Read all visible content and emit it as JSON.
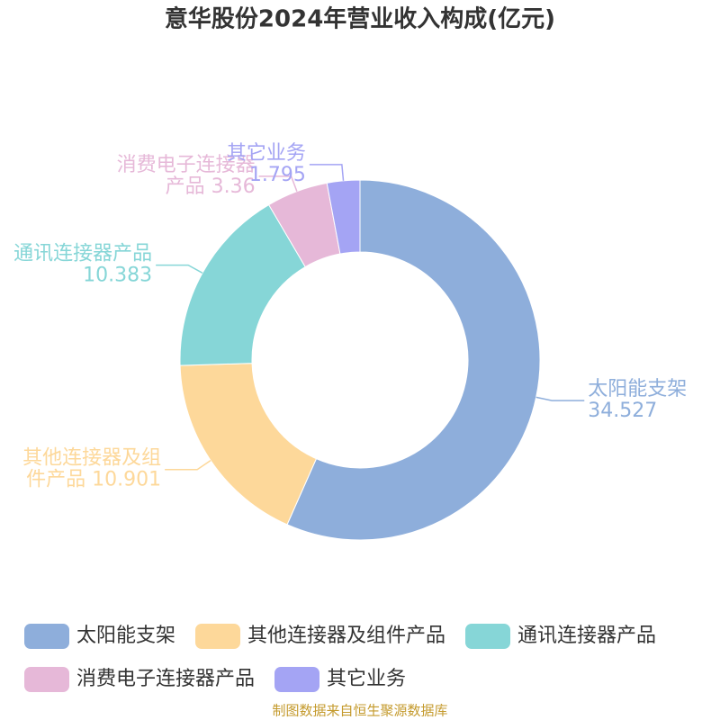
{
  "chart_data": {
    "type": "donut",
    "title": "意华股份2024年营业收入构成(亿元)",
    "categories": [
      "太阳能支架",
      "其他连接器及组件产品",
      "通讯连接器产品",
      "消费电子连接器产品",
      "其它业务"
    ],
    "values": [
      34.527,
      10.901,
      10.383,
      3.36,
      1.795
    ],
    "colors": [
      "#8eaedb",
      "#fdd89a",
      "#86d6d7",
      "#e6b8d8",
      "#a4a4f4"
    ],
    "legend": "bottom",
    "source": "制图数据来自恒生聚源数据库"
  }
}
